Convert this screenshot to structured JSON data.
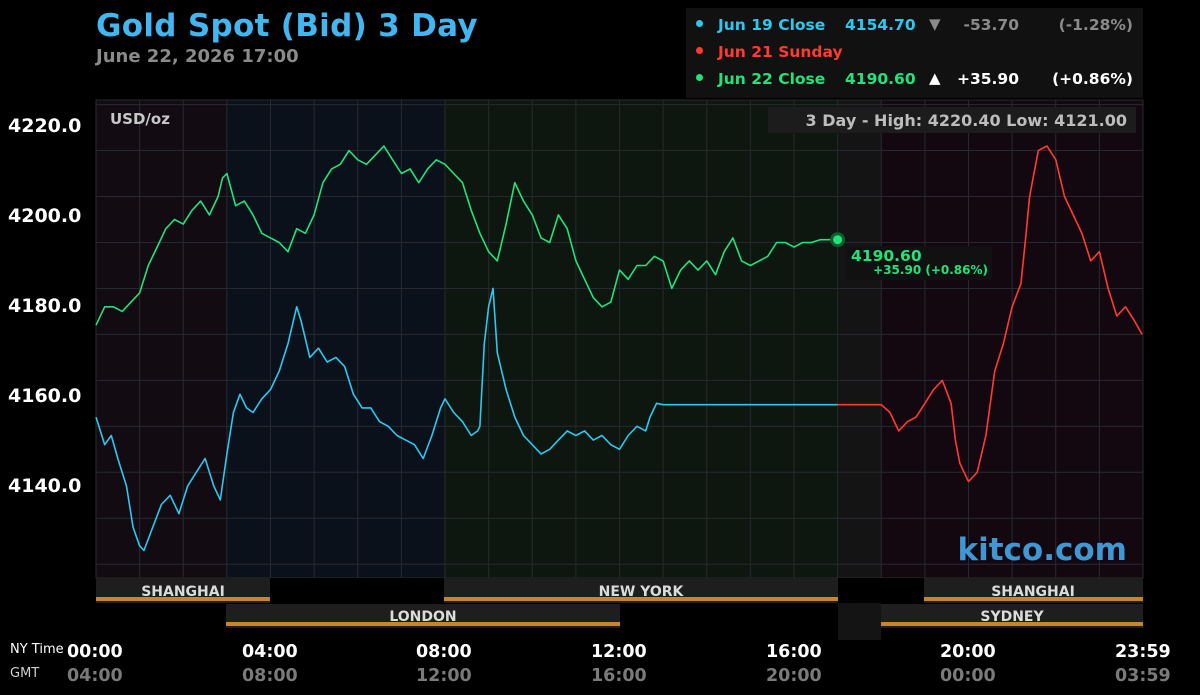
{
  "header": {
    "title": "Gold Spot (Bid) 3 Day",
    "date": "June 22, 2026 17:00"
  },
  "legend": [
    {
      "label": "Jun 19 Close",
      "value": "4154.70",
      "arrow": "▼",
      "change": "-53.70",
      "percent": "(-1.28%)",
      "color": "#2ec7f0",
      "value_color": "#2ec7f0",
      "change_color": "#8a8a8a"
    },
    {
      "label": "Jun 21 Sunday",
      "value": "",
      "arrow": "",
      "change": "",
      "percent": "",
      "color": "#ff3b30",
      "value_color": "#ff3b30",
      "change_color": "#ffffff"
    },
    {
      "label": "Jun 22 Close",
      "value": "4190.60",
      "arrow": "▲",
      "change": "+35.90",
      "percent": "(+0.86%)",
      "color": "#22e27a",
      "value_color": "#22e27a",
      "change_color": "#ffffff"
    }
  ],
  "plot": {
    "unit_label": "USD/oz",
    "high_low_text": "3 Day - High: 4220.40  Low: 4121.00",
    "watermark": "kitco.com",
    "last_price": "4190.60",
    "last_change": "+35.90 (+0.86%)"
  },
  "axes": {
    "y_ticks": [
      "4220.0",
      "4200.0",
      "4180.0",
      "4160.0",
      "4140.0"
    ],
    "ny_caption": "NY Time",
    "gmt_caption": "GMT",
    "x_ny": [
      "00:00",
      "04:00",
      "08:00",
      "12:00",
      "16:00",
      "20:00",
      "23:59"
    ],
    "x_gmt": [
      "04:00",
      "08:00",
      "12:00",
      "16:00",
      "20:00",
      "00:00",
      "03:59"
    ]
  },
  "sessions": {
    "row1": [
      "SHANGHAI",
      "NEW YORK",
      "SHANGHAI"
    ],
    "row2": [
      "LONDON",
      "SYDNEY"
    ]
  },
  "chart_data": {
    "type": "line",
    "title": "Gold Spot (Bid) 3 Day",
    "ylabel": "USD/oz",
    "ylim": [
      4117,
      4221
    ],
    "xlim": [
      0,
      24
    ],
    "x_unit": "NY time (hours)",
    "grid": true,
    "series": [
      {
        "name": "Jun 19 Close",
        "color": "#2ec7f0",
        "x": [
          0,
          0.2,
          0.35,
          0.5,
          0.7,
          0.85,
          1.0,
          1.1,
          1.3,
          1.5,
          1.7,
          1.9,
          2.1,
          2.3,
          2.5,
          2.7,
          2.85,
          3.0,
          3.15,
          3.3,
          3.45,
          3.6,
          3.8,
          4.0,
          4.2,
          4.4,
          4.6,
          4.7,
          4.9,
          5.1,
          5.3,
          5.5,
          5.7,
          5.9,
          6.1,
          6.3,
          6.5,
          6.7,
          6.9,
          7.1,
          7.3,
          7.5,
          7.7,
          7.9,
          8.0,
          8.2,
          8.4,
          8.6,
          8.75,
          8.8,
          8.9,
          9.0,
          9.1,
          9.2,
          9.4,
          9.6,
          9.8,
          10.0,
          10.2,
          10.4,
          10.6,
          10.8,
          11.0,
          11.2,
          11.4,
          11.6,
          11.8,
          12.0,
          12.2,
          12.4,
          12.6,
          12.7,
          12.8,
          12.85,
          13,
          14,
          15,
          16,
          17.0
        ],
        "values": [
          4152,
          4146,
          4148,
          4143,
          4137,
          4128,
          4124,
          4123,
          4128,
          4133,
          4135,
          4131,
          4137,
          4140,
          4143,
          4137,
          4134,
          4144,
          4153,
          4157,
          4154,
          4153,
          4156,
          4158,
          4162,
          4168,
          4176,
          4173,
          4165,
          4167,
          4164,
          4165,
          4163,
          4157,
          4154,
          4154,
          4151,
          4150,
          4148,
          4147,
          4146,
          4143,
          4148,
          4154,
          4156,
          4153,
          4151,
          4148,
          4149,
          4150,
          4168,
          4176,
          4180,
          4166,
          4158,
          4152,
          4148,
          4146,
          4144,
          4145,
          4147,
          4149,
          4148,
          4149,
          4147,
          4148,
          4146,
          4145,
          4148,
          4150,
          4149,
          4152,
          4154,
          4155,
          4154.7,
          4154.7,
          4154.7,
          4154.7,
          4154.7
        ]
      },
      {
        "name": "Jun 21 Sunday",
        "color": "#ff3b30",
        "x": [
          17.0,
          18.0,
          18.2,
          18.4,
          18.6,
          18.8,
          19.0,
          19.2,
          19.4,
          19.6,
          19.7,
          19.8,
          19.9,
          20.0,
          20.2,
          20.4,
          20.6,
          20.8,
          21.0,
          21.2,
          21.3,
          21.4,
          21.6,
          21.8,
          22.0,
          22.2,
          22.4,
          22.6,
          22.8,
          23.0,
          23.2,
          23.4,
          23.6,
          23.8,
          23.98
        ],
        "values": [
          4154.7,
          4154.7,
          4153,
          4149,
          4151,
          4152,
          4155,
          4158,
          4160,
          4155,
          4147,
          4142,
          4140,
          4138,
          4140,
          4148,
          4162,
          4168,
          4176,
          4181,
          4190,
          4200,
          4210,
          4211,
          4208,
          4200,
          4196,
          4192,
          4186,
          4188,
          4180,
          4174,
          4176,
          4173,
          4170
        ]
      },
      {
        "name": "Jun 22 Close",
        "color": "#22e27a",
        "x": [
          0,
          0.2,
          0.4,
          0.6,
          0.8,
          1.0,
          1.2,
          1.4,
          1.6,
          1.8,
          2.0,
          2.2,
          2.4,
          2.6,
          2.8,
          2.9,
          3.0,
          3.2,
          3.4,
          3.6,
          3.8,
          4.0,
          4.2,
          4.4,
          4.6,
          4.8,
          5.0,
          5.2,
          5.4,
          5.6,
          5.8,
          6.0,
          6.2,
          6.4,
          6.6,
          6.8,
          7.0,
          7.2,
          7.4,
          7.6,
          7.8,
          8.0,
          8.2,
          8.4,
          8.6,
          8.8,
          9.0,
          9.2,
          9.4,
          9.6,
          9.8,
          10.0,
          10.2,
          10.4,
          10.6,
          10.8,
          11.0,
          11.2,
          11.4,
          11.6,
          11.8,
          12.0,
          12.2,
          12.4,
          12.6,
          12.8,
          13.0,
          13.2,
          13.4,
          13.6,
          13.8,
          14.0,
          14.2,
          14.4,
          14.6,
          14.8,
          15.0,
          15.2,
          15.4,
          15.6,
          15.8,
          16.0,
          16.2,
          16.4,
          16.6,
          16.8,
          17.0
        ],
        "values": [
          4172,
          4176,
          4176,
          4175,
          4177,
          4179,
          4185,
          4189,
          4193,
          4195,
          4194,
          4197,
          4199,
          4196,
          4200,
          4204,
          4205,
          4198,
          4199,
          4196,
          4192,
          4191,
          4190,
          4188,
          4193,
          4192,
          4196,
          4203,
          4206,
          4207,
          4210,
          4208,
          4207,
          4209,
          4211,
          4208,
          4205,
          4206,
          4203,
          4206,
          4208,
          4207,
          4205,
          4203,
          4197,
          4192,
          4188,
          4186,
          4194,
          4203,
          4199,
          4196,
          4191,
          4190,
          4196,
          4193,
          4186,
          4182,
          4178,
          4176,
          4177,
          4184,
          4182,
          4185,
          4185,
          4187,
          4186,
          4180,
          4184,
          4186,
          4184,
          4186,
          4183,
          4188,
          4191,
          4186,
          4185,
          4186,
          4187,
          4190,
          4190,
          4189,
          4190,
          4190,
          4190.6,
          4190.6,
          4190.6
        ]
      }
    ],
    "annotations": [
      {
        "text": "3 Day - High: 4220.40  Low: 4121.00"
      },
      {
        "text": "4190.60"
      },
      {
        "text": "+35.90 (+0.86%)"
      }
    ]
  }
}
